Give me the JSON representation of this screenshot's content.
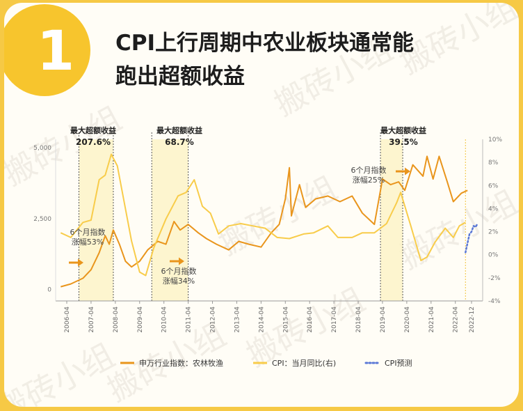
{
  "title_line1": "CPI上行周期中农业板块通常能",
  "title_line2": "跑出超额收益",
  "badge_number": "1",
  "watermark": "搬砖小组",
  "colors": {
    "index": "#e9951c",
    "cpi": "#f8cc4a",
    "forecast": "#5b78d6",
    "highlight": "#fdf3c8",
    "badge": "#f7c52d"
  },
  "annotations": [
    {
      "label": "最大超额收益",
      "value": "207.6%"
    },
    {
      "label": "最大超额收益",
      "value": "68.7%"
    },
    {
      "label": "最大超额收益",
      "value": "39.5%"
    },
    {
      "text1": "6个月指数",
      "text2": "涨幅53%"
    },
    {
      "text1": "6个月指数",
      "text2": "涨幅34%"
    },
    {
      "text1": "6个月指数",
      "text2": "涨幅25%"
    }
  ],
  "chart_data": {
    "type": "line",
    "x_tick_labels": [
      "2006-04",
      "2007-04",
      "2008-04",
      "2009-04",
      "2010-04",
      "2011-04",
      "2012-04",
      "2013-04",
      "2014-04",
      "2015-04",
      "2016-04",
      "2017-04",
      "2018-04",
      "2019-04",
      "2020-04",
      "2021-04",
      "2022-04",
      "2022-12"
    ],
    "y_left": {
      "ticks": [
        "0",
        "2,500",
        "5,000"
      ],
      "range": [
        -400,
        5300
      ]
    },
    "y_right": {
      "ticks": [
        "-4%",
        "-2%",
        "0%",
        "2%",
        "4%",
        "6%",
        "8%",
        "10%"
      ],
      "range": [
        -4,
        10
      ]
    },
    "highlight_periods": [
      [
        "2006-10",
        "2008-03"
      ],
      [
        "2009-10",
        "2011-04"
      ],
      [
        "2019-03",
        "2020-02"
      ]
    ],
    "series": [
      {
        "name": "申万行业指数：农林牧渔",
        "axis": "left",
        "points": [
          [
            "2006-01",
            100
          ],
          [
            "2006-06",
            200
          ],
          [
            "2006-12",
            400
          ],
          [
            "2007-04",
            700
          ],
          [
            "2007-08",
            1300
          ],
          [
            "2007-11",
            1900
          ],
          [
            "2008-01",
            1600
          ],
          [
            "2008-03",
            2100
          ],
          [
            "2008-06",
            1600
          ],
          [
            "2008-09",
            1000
          ],
          [
            "2008-12",
            800
          ],
          [
            "2009-04",
            1000
          ],
          [
            "2009-08",
            1400
          ],
          [
            "2010-01",
            1700
          ],
          [
            "2010-05",
            1600
          ],
          [
            "2010-09",
            2400
          ],
          [
            "2010-12",
            2100
          ],
          [
            "2011-04",
            2300
          ],
          [
            "2011-09",
            2000
          ],
          [
            "2012-01",
            1800
          ],
          [
            "2012-06",
            1600
          ],
          [
            "2012-12",
            1400
          ],
          [
            "2013-05",
            1700
          ],
          [
            "2013-10",
            1600
          ],
          [
            "2014-04",
            1500
          ],
          [
            "2014-09",
            2000
          ],
          [
            "2015-01",
            2300
          ],
          [
            "2015-04",
            3200
          ],
          [
            "2015-06",
            4300
          ],
          [
            "2015-07",
            2600
          ],
          [
            "2015-11",
            3700
          ],
          [
            "2016-02",
            2900
          ],
          [
            "2016-07",
            3200
          ],
          [
            "2017-01",
            3300
          ],
          [
            "2017-07",
            3100
          ],
          [
            "2018-01",
            3300
          ],
          [
            "2018-06",
            2700
          ],
          [
            "2018-12",
            2300
          ],
          [
            "2019-04",
            3900
          ],
          [
            "2019-08",
            3700
          ],
          [
            "2019-12",
            3800
          ],
          [
            "2020-03",
            3500
          ],
          [
            "2020-07",
            4400
          ],
          [
            "2020-12",
            4000
          ],
          [
            "2021-02",
            4700
          ],
          [
            "2021-05",
            3900
          ],
          [
            "2021-08",
            4700
          ],
          [
            "2021-12",
            3800
          ],
          [
            "2022-03",
            3100
          ],
          [
            "2022-07",
            3400
          ],
          [
            "2022-10",
            3500
          ]
        ]
      },
      {
        "name": "CPI：当月同比(右)",
        "axis": "right",
        "points": [
          [
            "2006-01",
            1.9
          ],
          [
            "2006-06",
            1.5
          ],
          [
            "2006-12",
            2.8
          ],
          [
            "2007-04",
            3.0
          ],
          [
            "2007-08",
            6.5
          ],
          [
            "2007-11",
            6.9
          ],
          [
            "2008-02",
            8.7
          ],
          [
            "2008-05",
            7.7
          ],
          [
            "2008-08",
            4.9
          ],
          [
            "2008-12",
            1.2
          ],
          [
            "2009-04",
            -1.5
          ],
          [
            "2009-07",
            -1.8
          ],
          [
            "2009-11",
            0.6
          ],
          [
            "2010-05",
            3.1
          ],
          [
            "2010-11",
            5.1
          ],
          [
            "2011-03",
            5.4
          ],
          [
            "2011-07",
            6.5
          ],
          [
            "2011-11",
            4.2
          ],
          [
            "2012-03",
            3.6
          ],
          [
            "2012-07",
            1.8
          ],
          [
            "2012-12",
            2.5
          ],
          [
            "2013-06",
            2.7
          ],
          [
            "2013-12",
            2.5
          ],
          [
            "2014-06",
            2.3
          ],
          [
            "2014-12",
            1.5
          ],
          [
            "2015-06",
            1.4
          ],
          [
            "2016-01",
            1.8
          ],
          [
            "2016-06",
            1.9
          ],
          [
            "2017-01",
            2.5
          ],
          [
            "2017-06",
            1.5
          ],
          [
            "2018-01",
            1.5
          ],
          [
            "2018-06",
            1.9
          ],
          [
            "2018-12",
            1.9
          ],
          [
            "2019-06",
            2.7
          ],
          [
            "2019-11",
            4.5
          ],
          [
            "2020-01",
            5.4
          ],
          [
            "2020-06",
            2.5
          ],
          [
            "2020-11",
            -0.5
          ],
          [
            "2021-02",
            -0.2
          ],
          [
            "2021-06",
            1.1
          ],
          [
            "2021-11",
            2.3
          ],
          [
            "2022-03",
            1.5
          ],
          [
            "2022-06",
            2.5
          ],
          [
            "2022-09",
            2.8
          ]
        ]
      },
      {
        "name": "CPI预测",
        "axis": "right",
        "dashed": true,
        "points": [
          [
            "2022-09",
            0.2
          ],
          [
            "2022-10",
            1.0
          ],
          [
            "2022-11",
            1.8
          ],
          [
            "2022-12",
            2.0
          ],
          [
            "2023-01",
            2.5
          ],
          [
            "2023-02",
            2.4
          ],
          [
            "2023-03",
            2.7
          ]
        ]
      }
    ]
  }
}
